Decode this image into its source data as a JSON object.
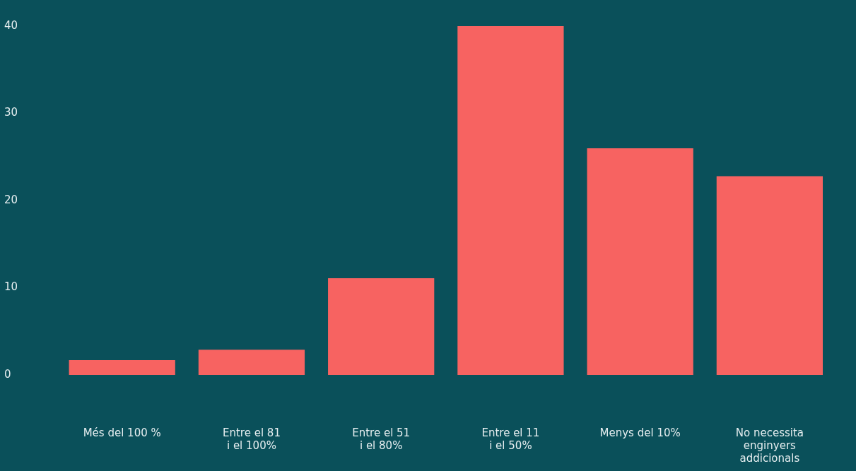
{
  "chart_data": {
    "type": "bar",
    "categories": [
      "Més del 100 %",
      "Entre el 81\ni el 100%",
      "Entre el 51\ni el 80%",
      "Entre el 11\ni el 50%",
      "Menys del 10%",
      "No necessita\nenginyers\naddicionals"
    ],
    "values": [
      1.7,
      2.9,
      11.1,
      40,
      26.0,
      22.8
    ],
    "color": "#f76361",
    "ylim": [
      0,
      40
    ],
    "yticks": [
      0,
      10,
      20,
      30,
      40
    ],
    "grid": false,
    "legend": false
  }
}
